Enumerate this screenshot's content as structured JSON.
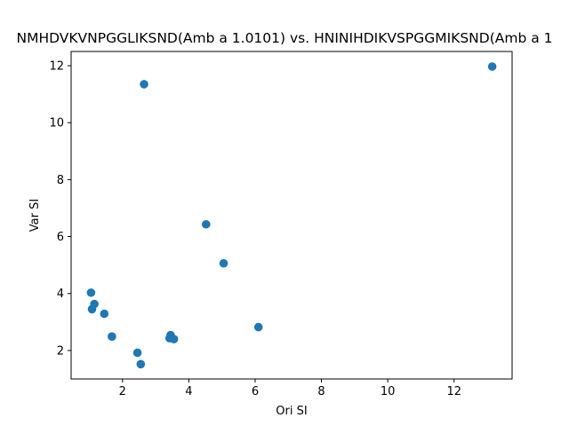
{
  "chart_data": {
    "type": "scatter",
    "title": "NMHDVKVNPGGLIKSND(Amb a 1.0101) vs. HNINIHDIKVSPGGMIKSND(Amb a 1",
    "xlabel": "Ori SI",
    "ylabel": "Var SI",
    "xlim": [
      0.45,
      13.75
    ],
    "ylim": [
      1.0,
      12.5
    ],
    "xticks": [
      2,
      4,
      6,
      8,
      10,
      12
    ],
    "yticks": [
      2,
      4,
      6,
      8,
      10,
      12
    ],
    "grid": false,
    "marker_color": "#1f77b4",
    "points": [
      {
        "x": 2.65,
        "y": 11.35
      },
      {
        "x": 13.15,
        "y": 11.97
      },
      {
        "x": 4.52,
        "y": 6.43
      },
      {
        "x": 5.05,
        "y": 5.06
      },
      {
        "x": 1.05,
        "y": 4.03
      },
      {
        "x": 1.15,
        "y": 3.63
      },
      {
        "x": 1.08,
        "y": 3.45
      },
      {
        "x": 1.45,
        "y": 3.29
      },
      {
        "x": 6.1,
        "y": 2.82
      },
      {
        "x": 1.68,
        "y": 2.49
      },
      {
        "x": 3.45,
        "y": 2.54
      },
      {
        "x": 3.42,
        "y": 2.43
      },
      {
        "x": 3.55,
        "y": 2.4
      },
      {
        "x": 2.45,
        "y": 1.92
      },
      {
        "x": 2.55,
        "y": 1.52
      }
    ]
  }
}
